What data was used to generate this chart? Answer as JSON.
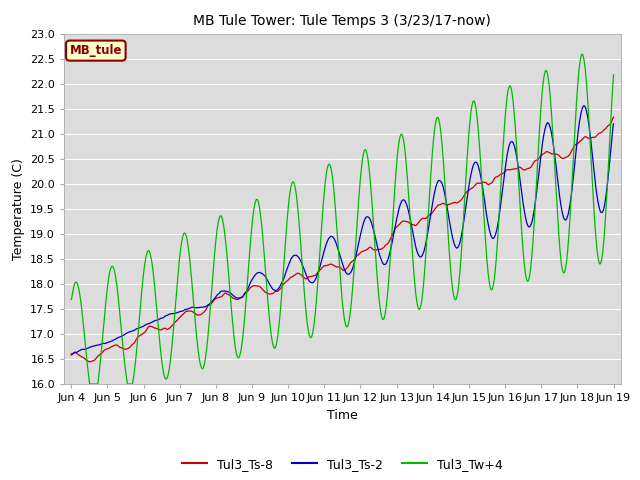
{
  "title": "MB Tule Tower: Tule Temps 3 (3/23/17-now)",
  "xlabel": "Time",
  "ylabel": "Temperature (C)",
  "ylim": [
    16.0,
    23.0
  ],
  "xlim_min": -0.2,
  "xlim_max": 15.2,
  "xtick_labels": [
    "Jun 4",
    "Jun 5",
    "Jun 6",
    "Jun 7",
    "Jun 8",
    "Jun 9",
    "Jun 10",
    "Jun 11",
    "Jun 12",
    "Jun 13",
    "Jun 14",
    "Jun 15",
    "Jun 16",
    "Jun 17",
    "Jun 18",
    "Jun 19"
  ],
  "xtick_positions": [
    0,
    1,
    2,
    3,
    4,
    5,
    6,
    7,
    8,
    9,
    10,
    11,
    12,
    13,
    14,
    15
  ],
  "ytick_positions": [
    16.0,
    16.5,
    17.0,
    17.5,
    18.0,
    18.5,
    19.0,
    19.5,
    20.0,
    20.5,
    21.0,
    21.5,
    22.0,
    22.5,
    23.0
  ],
  "bg_color": "#dcdcdc",
  "fig_bg_color": "#ffffff",
  "line_red_color": "#cc0000",
  "line_blue_color": "#0000cc",
  "line_green_color": "#00bb00",
  "legend_box_label": "MB_tule",
  "legend_box_bg": "#ffffcc",
  "legend_box_edge": "#880000",
  "series_labels": [
    "Tul3_Ts-8",
    "Tul3_Ts-2",
    "Tul3_Tw+4"
  ],
  "n_points": 1500,
  "title_fontsize": 10,
  "axis_label_fontsize": 9,
  "tick_fontsize": 8
}
